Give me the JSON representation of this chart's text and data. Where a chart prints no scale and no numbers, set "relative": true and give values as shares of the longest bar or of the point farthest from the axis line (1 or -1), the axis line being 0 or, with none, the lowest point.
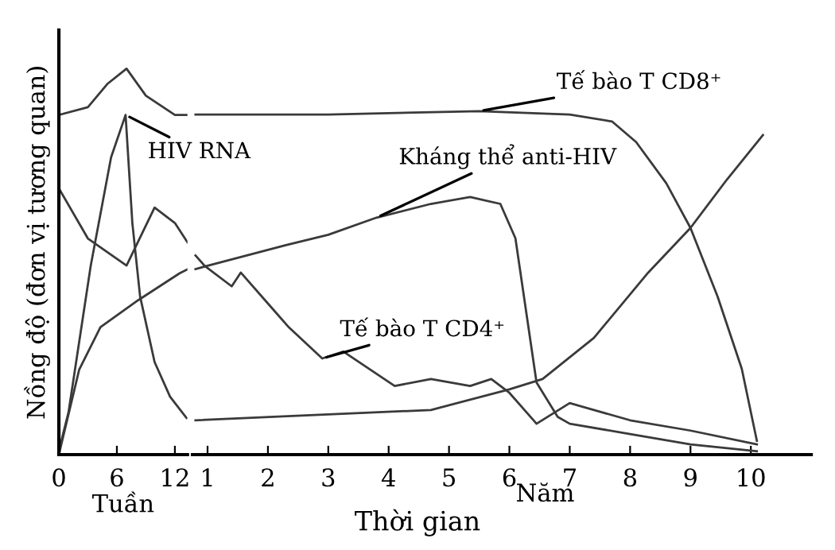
{
  "chart_data": [
    {
      "type": "line",
      "relative": true,
      "ylabel": "Nồng độ (đơn vị tương quan)",
      "xlabel": "Tuần",
      "x": [
        0,
        1,
        3.3,
        5.4,
        6.9,
        7.6,
        8.4,
        9.9,
        11.5,
        13.2
      ],
      "xlim": [
        0,
        13.3
      ],
      "xticks": [
        0,
        6,
        12
      ],
      "tick_labels": "x",
      "grid": false,
      "legend": false,
      "marker": "none",
      "line_style": "solid",
      "series": [
        {
          "color": "#3a3a3a",
          "x": [
            0,
            3,
            5,
            7,
            9,
            12,
            13.3
          ],
          "values": [
            0.88,
            0.9,
            0.96,
            1.0,
            0.93,
            0.88,
            0.88
          ]
        },
        {
          "name": "HIV RNA",
          "color": "#3a3a3a",
          "values": [
            0.01,
            0.11,
            0.49,
            0.77,
            0.88,
            0.6,
            0.41,
            0.24,
            0.15,
            0.095
          ]
        },
        {
          "color": "#3a3a3a",
          "x": [
            0,
            2.1,
            4.3,
            8.2,
            12.5,
            13.3
          ],
          "values": [
            0,
            0.22,
            0.33,
            0.4,
            0.47,
            0.48
          ]
        },
        {
          "color": "#3a3a3a",
          "x": [
            0,
            3,
            7,
            9.9,
            12,
            13.3
          ],
          "values": [
            0.69,
            0.56,
            0.49,
            0.64,
            0.6,
            0.55
          ]
        }
      ]
    },
    {
      "type": "line",
      "relative": true,
      "xlabel": "Năm",
      "xlim": [
        0.75,
        11
      ],
      "xticks": [
        1,
        2,
        3,
        4,
        5,
        6,
        7,
        8,
        9,
        10
      ],
      "tick_labels": "x",
      "grid": false,
      "legend": false,
      "marker": "none",
      "line_style": "solid",
      "annotations": [
        "Thời gian"
      ],
      "series": [
        {
          "name": "Tế bào T CD8⁺",
          "color": "#3a3a3a",
          "x": [
            0.8,
            3,
            5.5,
            7.0,
            7.7,
            8.1,
            8.6,
            9.0,
            9.45,
            9.85,
            10.1
          ],
          "values": [
            0.99,
            0.99,
            1.0,
            0.99,
            0.97,
            0.91,
            0.79,
            0.66,
            0.46,
            0.25,
            0.04
          ]
        },
        {
          "color": "#3a3a3a",
          "x": [
            0.8,
            2.1,
            4.7,
            6.0,
            6.55,
            7.4,
            8.3,
            9.0,
            9.6,
            10.2
          ],
          "values": [
            0.1,
            0.11,
            0.13,
            0.19,
            0.22,
            0.34,
            0.53,
            0.66,
            0.8,
            0.93
          ]
        },
        {
          "name": "Kháng thể anti-HIV",
          "color": "#3a3a3a",
          "x": [
            0.8,
            1.0,
            2.3,
            3.0,
            3.8,
            4.7,
            5.35,
            5.85,
            6.1,
            6.3,
            6.45,
            6.8,
            7.0,
            8.0,
            9.0,
            10.1
          ],
          "values": [
            0.54,
            0.55,
            0.61,
            0.64,
            0.69,
            0.73,
            0.75,
            0.73,
            0.63,
            0.39,
            0.21,
            0.11,
            0.09,
            0.06,
            0.03,
            0.01
          ]
        },
        {
          "name": "Tế bào T CD4⁺",
          "color": "#3a3a3a",
          "x": [
            0.8,
            0.95,
            1.4,
            1.55,
            2.1,
            2.35,
            2.9,
            3.25,
            4.1,
            4.7,
            5.35,
            5.7,
            6.0,
            6.45,
            7.0,
            8.0,
            9.0,
            10.1
          ],
          "values": [
            0.58,
            0.55,
            0.49,
            0.53,
            0.42,
            0.37,
            0.28,
            0.3,
            0.2,
            0.22,
            0.2,
            0.22,
            0.18,
            0.09,
            0.15,
            0.1,
            0.07,
            0.03
          ]
        }
      ]
    }
  ]
}
